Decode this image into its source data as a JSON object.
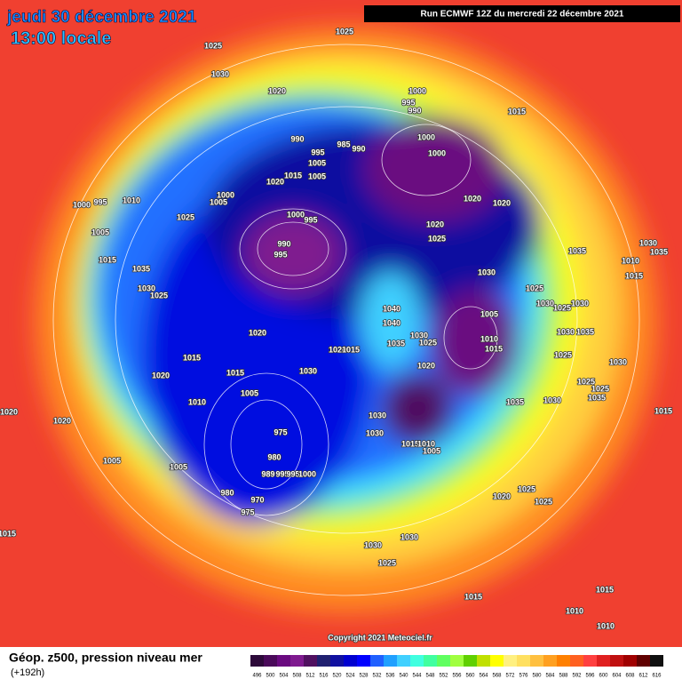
{
  "header": {
    "title": "jeudi 30 décembre 2021",
    "subtitle": "13:00 locale",
    "run": "Run ECMWF 12Z du mercredi 22 décembre 2021"
  },
  "copyright": "Copyright 2021 Meteociel.fr",
  "footer": {
    "caption": "Géop. z500, pression niveau mer",
    "lead": "(+192h)"
  },
  "scale": [
    {
      "value": 496,
      "color": "#2d0a3a"
    },
    {
      "value": 500,
      "color": "#4a0a5a"
    },
    {
      "value": 504,
      "color": "#6a0a80"
    },
    {
      "value": 508,
      "color": "#7f1a8f"
    },
    {
      "value": 512,
      "color": "#501060"
    },
    {
      "value": 516,
      "color": "#202070"
    },
    {
      "value": 520,
      "color": "#1010a0"
    },
    {
      "value": 524,
      "color": "#0000d0"
    },
    {
      "value": 528,
      "color": "#0000ff"
    },
    {
      "value": 532,
      "color": "#2060ff"
    },
    {
      "value": 536,
      "color": "#20a0ff"
    },
    {
      "value": 540,
      "color": "#40d0ff"
    },
    {
      "value": 544,
      "color": "#40ffe0"
    },
    {
      "value": 548,
      "color": "#40ffa0"
    },
    {
      "value": 552,
      "color": "#60ff60"
    },
    {
      "value": 556,
      "color": "#a0ff40"
    },
    {
      "value": 560,
      "color": "#60d000"
    },
    {
      "value": 564,
      "color": "#c0e000"
    },
    {
      "value": 568,
      "color": "#ffff00"
    },
    {
      "value": 572,
      "color": "#fff080"
    },
    {
      "value": 576,
      "color": "#ffe060"
    },
    {
      "value": 580,
      "color": "#ffc040"
    },
    {
      "value": 584,
      "color": "#ffa020"
    },
    {
      "value": 588,
      "color": "#ff8000"
    },
    {
      "value": 592,
      "color": "#ff6020"
    },
    {
      "value": 596,
      "color": "#ff4040"
    },
    {
      "value": 600,
      "color": "#e02020"
    },
    {
      "value": 604,
      "color": "#c01010"
    },
    {
      "value": 608,
      "color": "#a00000"
    },
    {
      "value": 612,
      "color": "#600000"
    },
    {
      "value": 616,
      "color": "#101010"
    }
  ],
  "isobar_labels": [
    1025,
    1025,
    1030,
    1020,
    1000,
    995,
    990,
    1015,
    1000,
    1000,
    990,
    985,
    990,
    995,
    1005,
    1015,
    1005,
    1020,
    1000,
    1005,
    1010,
    995,
    1000,
    1020,
    1020,
    1025,
    1000,
    995,
    1020,
    1025,
    990,
    995,
    1005,
    1015,
    1035,
    1030,
    1035,
    1030,
    1035,
    1010,
    1015,
    1030,
    1025,
    1025,
    1030,
    1025,
    1030,
    1040,
    1005,
    1040,
    1030,
    1010,
    1025,
    1015,
    1035,
    1020,
    1020,
    1015,
    1030,
    1035,
    1015,
    1025,
    1030,
    1020,
    1030,
    1015,
    1020,
    1025,
    1025,
    1005,
    1010,
    1035,
    1030,
    1035,
    1015,
    1020,
    1030,
    1020,
    975,
    1030,
    1015,
    1010,
    1005,
    1005,
    980,
    1005,
    989,
    995,
    995,
    1000,
    980,
    970,
    975,
    1020,
    1025,
    1025,
    1030,
    1015,
    1030,
    1025,
    1015,
    1015,
    1010,
    1010
  ]
}
